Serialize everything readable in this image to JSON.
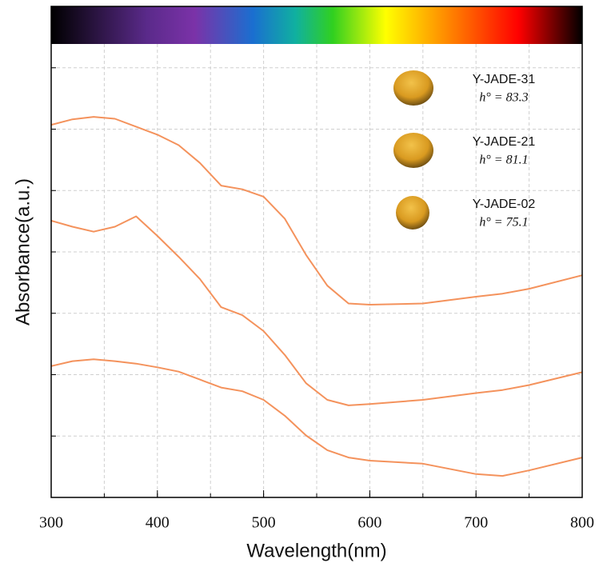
{
  "chart_data": {
    "type": "line",
    "xlabel": "Wavelength(nm)",
    "ylabel": "Absorbance(a.u.)",
    "x": [
      300,
      320,
      340,
      360,
      380,
      400,
      420,
      440,
      460,
      480,
      500,
      520,
      540,
      560,
      580,
      600,
      650,
      700,
      725,
      750,
      800
    ],
    "series": [
      {
        "name": "Y-JADE-31",
        "color": "#f4925c",
        "values": [
          6.07,
          6.16,
          6.2,
          6.17,
          6.04,
          5.91,
          5.74,
          5.45,
          5.08,
          5.02,
          4.9,
          4.54,
          3.95,
          3.45,
          3.16,
          3.14,
          3.16,
          3.27,
          3.32,
          3.4,
          3.62
        ]
      },
      {
        "name": "Y-JADE-21",
        "color": "#f4925c",
        "values": [
          4.51,
          4.41,
          4.33,
          4.41,
          4.58,
          4.26,
          3.92,
          3.56,
          3.1,
          2.97,
          2.71,
          2.32,
          1.86,
          1.59,
          1.5,
          1.52,
          1.59,
          1.7,
          1.75,
          1.83,
          2.04
        ]
      },
      {
        "name": "Y-JADE-02",
        "color": "#f4925c",
        "values": [
          2.14,
          2.22,
          2.25,
          2.22,
          2.18,
          2.12,
          2.05,
          1.92,
          1.79,
          1.73,
          1.59,
          1.33,
          1.01,
          0.77,
          0.65,
          0.6,
          0.55,
          0.38,
          0.35,
          0.44,
          0.65
        ]
      }
    ],
    "annotations": [
      "h° = 83.3",
      "h° = 81.1",
      "h° = 75.1"
    ],
    "xlim": [
      300,
      800
    ],
    "xticks": [
      300,
      400,
      500,
      600,
      700,
      800
    ],
    "xgrid": [
      350,
      400,
      450,
      500,
      550,
      600,
      650,
      700,
      750
    ],
    "ylim": [
      0,
      8
    ],
    "yticks": [
      1,
      2,
      3,
      4,
      5,
      6,
      7
    ],
    "grid": true
  }
}
